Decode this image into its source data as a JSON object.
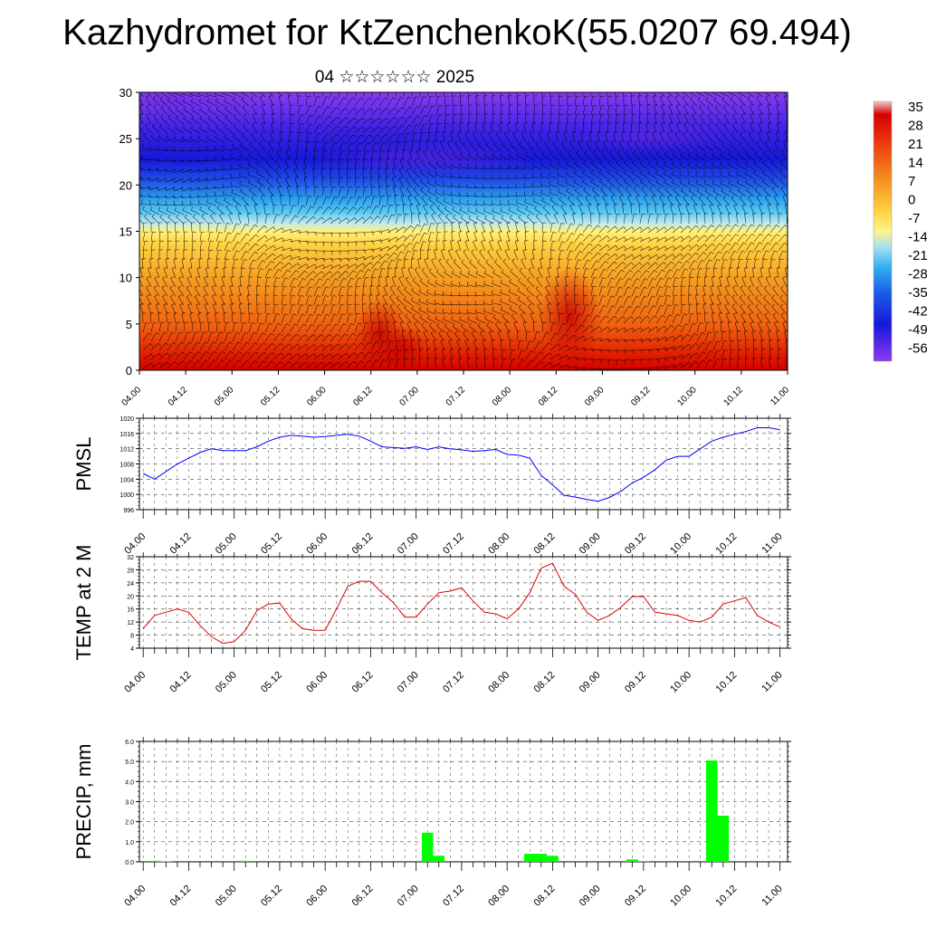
{
  "title": "Kazhydromet for KtZenchenkoK(55.0207 69.494)",
  "subtitle": "04 ☆☆☆☆☆☆ 2025",
  "x_tick_labels": [
    "04.00",
    "04.12",
    "05.00",
    "05.12",
    "06.00",
    "06.12",
    "07.00",
    "07.12",
    "08.00",
    "08.12",
    "09.00",
    "09.12",
    "10.00",
    "10.12",
    "11.00"
  ],
  "chart_data": [
    {
      "type": "heatmap",
      "title": "",
      "xlabel": "",
      "ylabel": "",
      "ylim": [
        0,
        30
      ],
      "yticks": [
        0,
        5,
        10,
        15,
        20,
        25,
        30
      ],
      "colorbar_labels": [
        "35",
        "28",
        "21",
        "14",
        "7",
        "0",
        "-7",
        "-14",
        "-21",
        "-28",
        "-35",
        "-42",
        "-49",
        "-56"
      ],
      "colors": {
        "hot": "#d40000",
        "warm": "#f07818",
        "mild": "#ffd040",
        "cool": "#2ab4ee",
        "cold": "#1a1ae0",
        "coldest": "#8a3af0"
      },
      "overlay": "wind barbs"
    },
    {
      "type": "line",
      "ylabel": "PMSL",
      "ylim": [
        996,
        1020
      ],
      "yticks": [
        996,
        1000,
        1004,
        1008,
        1012,
        1016,
        1020
      ],
      "color": "#0000ff",
      "x": [
        0,
        3,
        6,
        9,
        12,
        15,
        18,
        21,
        24,
        27,
        30,
        33,
        36,
        39,
        42,
        45,
        48,
        51,
        54,
        57,
        60,
        63,
        66,
        69,
        72,
        75,
        78,
        81,
        84,
        87,
        90,
        93,
        96,
        99,
        102,
        105,
        108,
        111,
        114,
        117,
        120,
        123,
        126,
        129,
        132,
        135,
        138,
        141,
        144,
        147,
        150,
        153,
        156,
        159,
        162,
        165,
        168
      ],
      "values": [
        1005.5,
        1004,
        1006,
        1008,
        1009.5,
        1011,
        1012,
        1011.5,
        1011.5,
        1011.5,
        1012.5,
        1014,
        1015,
        1015.5,
        1015.3,
        1015,
        1015.2,
        1015.5,
        1015.8,
        1015.3,
        1014,
        1012.5,
        1012.3,
        1012.1,
        1012.5,
        1011.8,
        1012.5,
        1012,
        1011.7,
        1011.3,
        1011.5,
        1011.8,
        1010.5,
        1010.3,
        1009.5,
        1005,
        1002.5,
        999.8,
        999.3,
        998.7,
        998.2,
        999.2,
        1000.8,
        1003,
        1004.5,
        1006.5,
        1009,
        1010,
        1010,
        1012,
        1014,
        1015,
        1015.8,
        1016.5,
        1017.5,
        1017.5,
        1017
      ]
    },
    {
      "type": "line",
      "ylabel": "TEMP at 2 M",
      "ylim": [
        4,
        32
      ],
      "yticks": [
        4,
        8,
        12,
        16,
        20,
        24,
        28,
        32
      ],
      "color": "#e00000",
      "x": [
        0,
        3,
        6,
        9,
        12,
        15,
        18,
        21,
        24,
        27,
        30,
        33,
        36,
        39,
        42,
        45,
        48,
        51,
        54,
        57,
        60,
        63,
        66,
        69,
        72,
        75,
        78,
        81,
        84,
        87,
        90,
        93,
        96,
        99,
        102,
        105,
        108,
        111,
        114,
        117,
        120,
        123,
        126,
        129,
        132,
        135,
        138,
        141,
        144,
        147,
        150,
        153,
        156,
        159,
        162,
        165,
        168
      ],
      "values": [
        10,
        14,
        15,
        16,
        15,
        11,
        7.5,
        5.5,
        6,
        9.5,
        15.5,
        17.5,
        17.8,
        13,
        10,
        9.5,
        9.5,
        16,
        23,
        24.5,
        24.5,
        21,
        18,
        13.5,
        13.5,
        17.5,
        21,
        21.5,
        22.5,
        18.5,
        15,
        14.5,
        13,
        16,
        21,
        28.5,
        30,
        23,
        20.5,
        15,
        12.5,
        14,
        16.5,
        19.8,
        19.8,
        15,
        14.5,
        14,
        12.5,
        12,
        13.5,
        17.5,
        18.5,
        19.5,
        14,
        12,
        10.5
      ]
    },
    {
      "type": "bar",
      "ylabel": "PRECIP, mm",
      "ylim": [
        0,
        6
      ],
      "yticks": [
        "0.0",
        "1.0",
        "2.0",
        "3.0",
        "4.0",
        "5.0",
        "6.0"
      ],
      "color": "#00ff00",
      "x": [
        3,
        6,
        27,
        75,
        78,
        102,
        105,
        108,
        129,
        132,
        150,
        153
      ],
      "values": [
        0.05,
        0.02,
        0.05,
        1.45,
        0.3,
        0.4,
        0.4,
        0.3,
        0.12,
        0.04,
        5.05,
        2.3
      ]
    }
  ]
}
